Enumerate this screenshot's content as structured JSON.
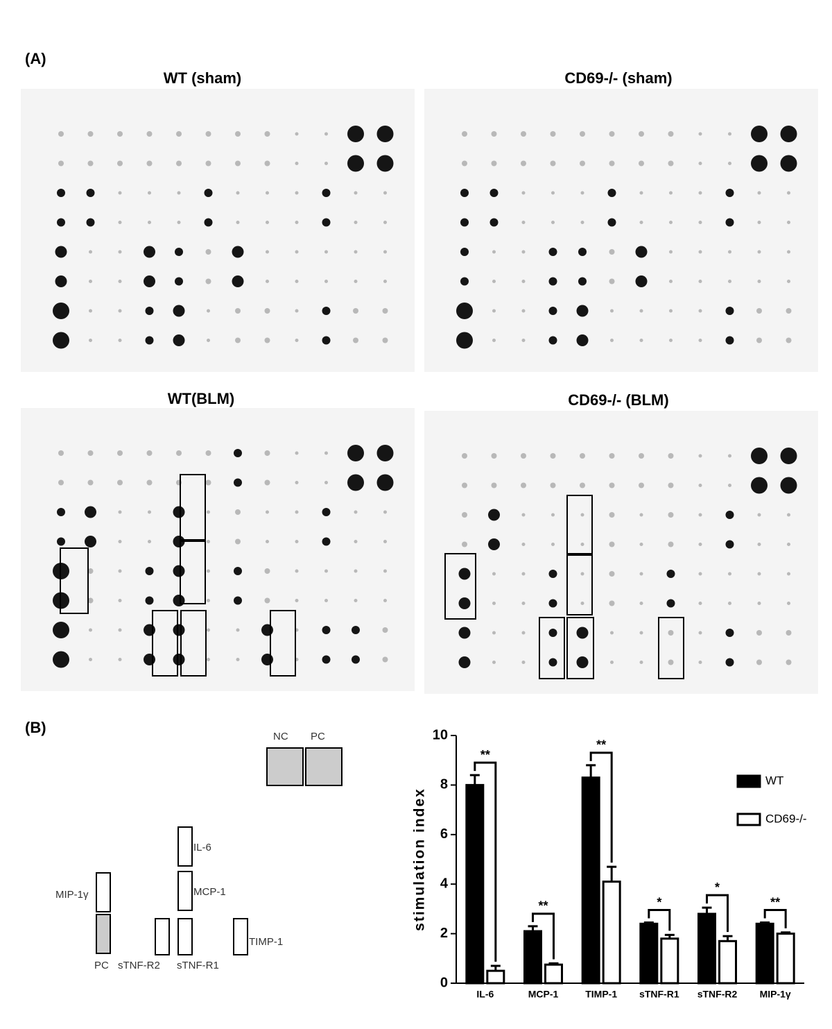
{
  "panel_a": {
    "label": "(A)",
    "titles": [
      "WT (sham)",
      "CD69-/- (sham)",
      "WT(BLM)",
      "CD69-/- (BLM)"
    ]
  },
  "panel_b": {
    "label": "(B)",
    "array_map": {
      "labels": [
        "NC",
        "PC",
        "IL-6",
        "MIP-1γ",
        "MCP-1",
        "TIMP-1",
        "PC",
        "sTNF-R2",
        "sTNF-R1"
      ]
    }
  },
  "chart_data": {
    "type": "bar",
    "y_label": "stimulation index",
    "categories": [
      "IL-6",
      "MCP-1",
      "TIMP-1",
      "sTNF-R1",
      "sTNF-R2",
      "MIP-1γ"
    ],
    "series": [
      {
        "name": "WT",
        "color": "#000000",
        "values": [
          8.0,
          2.1,
          8.3,
          2.4,
          2.8,
          2.4
        ],
        "errors": [
          0.4,
          0.2,
          0.5,
          0.05,
          0.25,
          0.05
        ]
      },
      {
        "name": "CD69-/-",
        "color": "#ffffff",
        "values": [
          0.5,
          0.75,
          4.1,
          1.8,
          1.7,
          2.0
        ],
        "errors": [
          0.2,
          0.05,
          0.6,
          0.15,
          0.2,
          0.05
        ]
      }
    ],
    "annotations": [
      "**",
      "**",
      "**",
      "*",
      "*",
      "**"
    ],
    "ylim": [
      0,
      10
    ],
    "yticks": [
      0,
      2,
      4,
      6,
      8,
      10
    ]
  }
}
